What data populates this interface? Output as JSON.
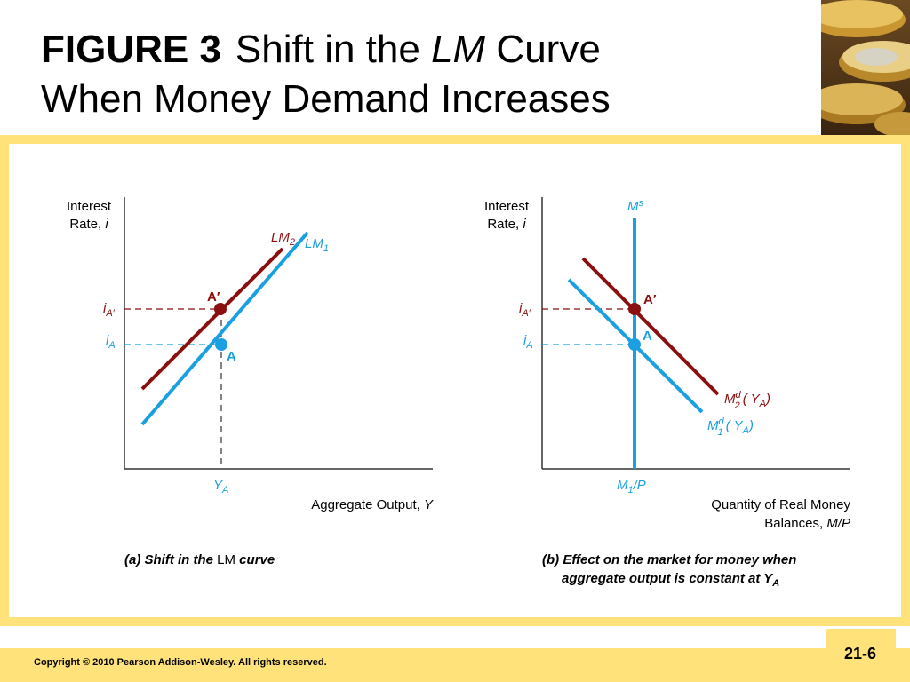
{
  "title": {
    "figure": "FIGURE 3",
    "line1_text": "Shift in the",
    "line1_italic": "LM",
    "line1_end": "Curve",
    "line2": "When Money Demand Increases"
  },
  "footer": {
    "copyright": "Copyright © 2010 Pearson Addison-Wesley. All rights reserved.",
    "page": "21-6"
  },
  "colors": {
    "blue": "#1aa0e0",
    "red": "#8b0f0f",
    "frame": "#ffe27a"
  },
  "chart_data": [
    {
      "type": "line",
      "ylabel_line1": "Interest",
      "ylabel_line2": "Rate, ",
      "ylabel_var": "i",
      "xlabel": "Aggregate Output, ",
      "xlabel_var": "Y",
      "caption_pre": "(a) Shift in the ",
      "caption_lm": "LM",
      "caption_post": " curve",
      "series": [
        {
          "name": "LM",
          "sub": "1",
          "color": "#1aa0e0"
        },
        {
          "name": "LM",
          "sub": "2",
          "color": "#8b0f0f"
        }
      ],
      "points": [
        {
          "label": "A",
          "color": "#1aa0e0"
        },
        {
          "label": "A′",
          "color": "#8b0f0f"
        }
      ],
      "y_ticks": [
        {
          "main": "i",
          "sub": "A′",
          "color": "#8b0f0f"
        },
        {
          "main": "i",
          "sub": "A",
          "color": "#1aa0e0"
        }
      ],
      "x_tick": {
        "main": "Y",
        "sub": "A",
        "color": "#1aa0e0"
      }
    },
    {
      "type": "line",
      "ylabel_line1": "Interest",
      "ylabel_line2": "Rate, ",
      "ylabel_var": "i",
      "xlabel_line1": "Quantity of Real Money",
      "xlabel_line2": "Balances, ",
      "xlabel_var": "M/P",
      "caption_line1": "(b) Effect on the market for money when",
      "caption_line2": "aggregate output is constant at Y",
      "caption_sub": "A",
      "supply": {
        "name": "M",
        "sup": "s",
        "color": "#1aa0e0"
      },
      "supply_tick": {
        "main": "M",
        "sub": "1",
        "post": "/P"
      },
      "series": [
        {
          "name": "M",
          "sup": "d",
          "sub": "1",
          "arg": "( Y",
          "argsub": "A",
          "close": ")",
          "color": "#1aa0e0"
        },
        {
          "name": "M",
          "sup": "d",
          "sub": "2",
          "arg": "( Y",
          "argsub": "A",
          "close": ")",
          "color": "#8b0f0f"
        }
      ],
      "points": [
        {
          "label": "A",
          "color": "#1aa0e0"
        },
        {
          "label": "A′",
          "color": "#8b0f0f"
        }
      ],
      "y_ticks": [
        {
          "main": "i",
          "sub": "A′",
          "color": "#8b0f0f"
        },
        {
          "main": "i",
          "sub": "A",
          "color": "#1aa0e0"
        }
      ]
    }
  ]
}
